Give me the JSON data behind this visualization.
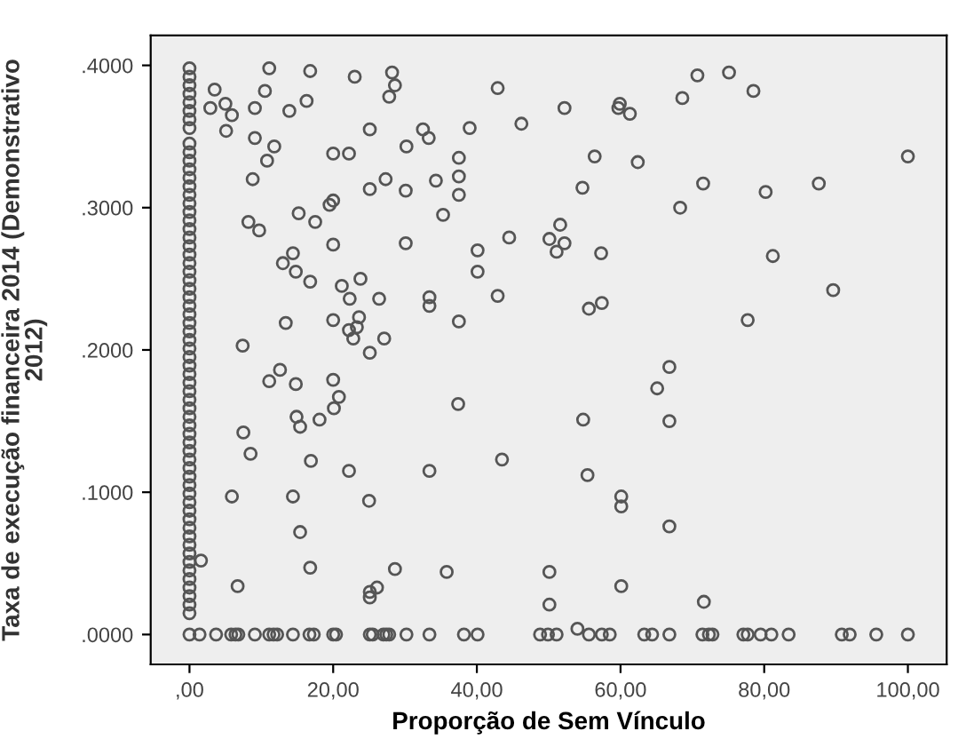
{
  "chart_data": {
    "type": "scatter",
    "xlabel": "Proporção de Sem Vínculo",
    "ylabel": "Taxa de execução financeira 2014 (Demonstrativo 2012)",
    "xlim": [
      -5.4,
      105.4
    ],
    "ylim": [
      -0.021,
      0.421
    ],
    "xticks": [
      {
        "value": 0,
        "label": ",00"
      },
      {
        "value": 20,
        "label": "20,00"
      },
      {
        "value": 40,
        "label": "40,00"
      },
      {
        "value": 60,
        "label": "60,00"
      },
      {
        "value": 80,
        "label": "80,00"
      },
      {
        "value": 100,
        "label": "100,00"
      }
    ],
    "yticks": [
      {
        "value": 0,
        "label": ".0000"
      },
      {
        "value": 0.1,
        "label": ".1000"
      },
      {
        "value": 0.2,
        "label": ".2000"
      },
      {
        "value": 0.3,
        "label": ".3000"
      },
      {
        "value": 0.4,
        "label": ".4000"
      }
    ],
    "grid": false,
    "marker": "circle",
    "series": [
      {
        "color": "#555555",
        "x": [
          11.1,
          16.8,
          23.0,
          28.2,
          28.6,
          27.8,
          3.5,
          2.9,
          5.0,
          5.9,
          5.1,
          9.1,
          10.5,
          13.9,
          16.3,
          42.9,
          52.2,
          46.2,
          9.1,
          11.8,
          10.8,
          8.8,
          20.0,
          22.2,
          25.1,
          32.5,
          33.3,
          39.0,
          30.2,
          37.5,
          37.5,
          37.5,
          27.3,
          25.1,
          30.1,
          34.3,
          20.0,
          19.5,
          8.2,
          9.7,
          15.2,
          17.5,
          35.3,
          20.0,
          30.1,
          40.1,
          40.1,
          42.9,
          44.5,
          50.1,
          51.1,
          51.6,
          14.4,
          13.0,
          14.8,
          16.8,
          21.2,
          23.8,
          22.3,
          26.4,
          33.4,
          33.4,
          13.4,
          20.0,
          23.6,
          23.3,
          22.2,
          22.8,
          27.1,
          37.5,
          7.4,
          25.1,
          70.7,
          75.1,
          78.5,
          68.6,
          59.9,
          59.7,
          61.3,
          56.4,
          62.4,
          100,
          54.7,
          71.5,
          80.2,
          87.6,
          68.3,
          52.2,
          57.3,
          81.2,
          89.6,
          57.4,
          55.6,
          77.7,
          11.1,
          12.6,
          14.8,
          20.0,
          20.8,
          20.1,
          18.1,
          14.9,
          15.4,
          7.5,
          8.5,
          16.9,
          22.2,
          37.4,
          33.4,
          43.5,
          5.9,
          14.4,
          25.0,
          15.4,
          1.6,
          6.7,
          16.8,
          28.6,
          35.8,
          25.1,
          25.1,
          26.1,
          50.1,
          50.1,
          66.8,
          65.1,
          54.8,
          66.8,
          55.4,
          60.1,
          60.1,
          66.8,
          60.1,
          71.6,
          54.0,
          0,
          1.4,
          3.7,
          5.8,
          6.4,
          6.8,
          9.1,
          11.1,
          11.7,
          12.2,
          14.4,
          16.7,
          17.3,
          20.0,
          20.4,
          25.1,
          25.5,
          27.0,
          27.4,
          27.8,
          30.2,
          33.4,
          38.2,
          40.1,
          48.8,
          49.9,
          51.1,
          55.6,
          57.4,
          58.5,
          63.3,
          64.4,
          66.8,
          71.4,
          72.3,
          72.8,
          77.1,
          77.7,
          79.5,
          81.0,
          83.4,
          90.8,
          91.9,
          95.6,
          100,
          0,
          0,
          0,
          0,
          0,
          0,
          0,
          0,
          0,
          0,
          0,
          0,
          0,
          0,
          0,
          0,
          0,
          0,
          0,
          0,
          0,
          0,
          0,
          0,
          0,
          0,
          0,
          0,
          0,
          0,
          0,
          0,
          0,
          0,
          0,
          0,
          0,
          0,
          0,
          0,
          0,
          0,
          0,
          0,
          0,
          0,
          0,
          0,
          0,
          0,
          0,
          0,
          0,
          0,
          0,
          0,
          0,
          0,
          0,
          0,
          0,
          0,
          0,
          0
        ],
        "values": [
          0.398,
          0.396,
          0.392,
          0.395,
          0.386,
          0.378,
          0.383,
          0.37,
          0.373,
          0.365,
          0.354,
          0.37,
          0.382,
          0.368,
          0.375,
          0.384,
          0.37,
          0.359,
          0.349,
          0.343,
          0.333,
          0.32,
          0.338,
          0.338,
          0.355,
          0.355,
          0.349,
          0.356,
          0.343,
          0.335,
          0.322,
          0.309,
          0.32,
          0.313,
          0.312,
          0.319,
          0.305,
          0.302,
          0.29,
          0.284,
          0.296,
          0.29,
          0.295,
          0.274,
          0.275,
          0.27,
          0.255,
          0.238,
          0.279,
          0.278,
          0.269,
          0.288,
          0.268,
          0.261,
          0.255,
          0.248,
          0.245,
          0.25,
          0.236,
          0.236,
          0.237,
          0.231,
          0.219,
          0.221,
          0.223,
          0.216,
          0.214,
          0.208,
          0.208,
          0.22,
          0.203,
          0.198,
          0.393,
          0.395,
          0.382,
          0.377,
          0.373,
          0.37,
          0.366,
          0.336,
          0.332,
          0.336,
          0.314,
          0.317,
          0.311,
          0.317,
          0.3,
          0.275,
          0.268,
          0.266,
          0.242,
          0.233,
          0.229,
          0.221,
          0.178,
          0.186,
          0.176,
          0.179,
          0.167,
          0.159,
          0.151,
          0.153,
          0.146,
          0.142,
          0.127,
          0.122,
          0.115,
          0.162,
          0.115,
          0.123,
          0.097,
          0.097,
          0.094,
          0.072,
          0.052,
          0.034,
          0.047,
          0.046,
          0.044,
          0.03,
          0.026,
          0.033,
          0.044,
          0.021,
          0.188,
          0.173,
          0.151,
          0.15,
          0.112,
          0.097,
          0.09,
          0.076,
          0.034,
          0.023,
          0.004,
          0,
          0,
          0,
          0,
          0,
          0,
          0,
          0,
          0,
          0,
          0,
          0,
          0,
          0,
          0,
          0,
          0,
          0,
          0,
          0,
          0,
          0,
          0,
          0,
          0,
          0,
          0,
          0,
          0,
          0,
          0,
          0,
          0,
          0,
          0,
          0,
          0,
          0,
          0,
          0,
          0,
          0,
          0,
          0,
          0,
          0.398,
          0.392,
          0.386,
          0.38,
          0.374,
          0.368,
          0.362,
          0.356,
          0.345,
          0.339,
          0.333,
          0.327,
          0.321,
          0.315,
          0.309,
          0.303,
          0.297,
          0.291,
          0.285,
          0.279,
          0.273,
          0.267,
          0.261,
          0.255,
          0.249,
          0.243,
          0.237,
          0.231,
          0.225,
          0.219,
          0.213,
          0.207,
          0.201,
          0.195,
          0.189,
          0.183,
          0.177,
          0.171,
          0.165,
          0.159,
          0.153,
          0.147,
          0.141,
          0.135,
          0.129,
          0.123,
          0.117,
          0.111,
          0.105,
          0.099,
          0.093,
          0.087,
          0.081,
          0.075,
          0.069,
          0.063,
          0.057,
          0.051,
          0.045,
          0.039,
          0.033,
          0.027,
          0.021,
          0.015
        ]
      }
    ]
  }
}
